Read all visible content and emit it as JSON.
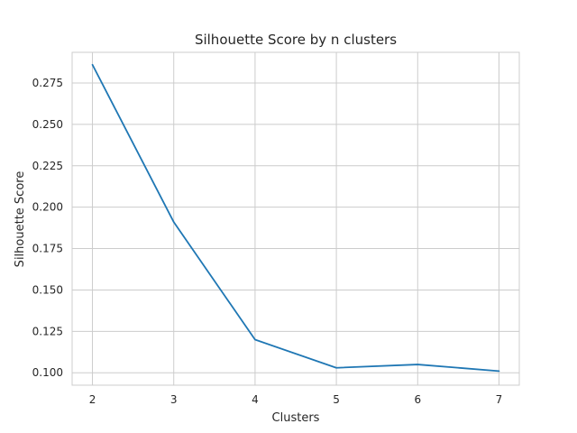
{
  "chart_data": {
    "type": "line",
    "title": "Silhouette Score by n clusters",
    "xlabel": "Clusters",
    "ylabel": "Silhouette Score",
    "x": [
      2,
      3,
      4,
      5,
      6,
      7
    ],
    "series": [
      {
        "values": [
          0.286,
          0.191,
          0.12,
          0.103,
          0.105,
          0.101
        ]
      }
    ],
    "xlim": [
      1.75,
      7.25
    ],
    "ylim": [
      0.0925,
      0.2935
    ],
    "xticks": [
      2,
      3,
      4,
      5,
      6,
      7
    ],
    "yticks": [
      0.1,
      0.125,
      0.15,
      0.175,
      0.2,
      0.225,
      0.25,
      0.275
    ],
    "ytick_labels": [
      "0.100",
      "0.125",
      "0.150",
      "0.175",
      "0.200",
      "0.225",
      "0.250",
      "0.275"
    ],
    "grid": true,
    "colors": {
      "line": "#1f77b4",
      "grid": "#cccccc",
      "spine": "#cccccc",
      "text": "#262626"
    }
  }
}
